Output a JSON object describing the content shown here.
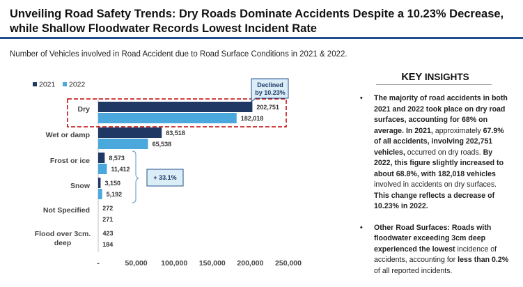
{
  "title_line1": "Unveiling Road Safety Trends: Dry Roads Dominate Accidents Despite a 10.23% Decrease,",
  "title_line2": "while Shallow Floodwater Records Lowest Incident Rate",
  "subtitle": "Number of Vehicles involved in Road Accident due to Road Surface Conditions in 2021 & 2022.",
  "colors": {
    "series_2021": "#1f3864",
    "series_2022": "#4ba8dc",
    "title_rule": "#1f4e8c",
    "highlight": "#c00000",
    "callout_fill": "#dbeef8",
    "callout_border": "#1f4e8c"
  },
  "chart_data": {
    "type": "bar",
    "orientation": "horizontal",
    "categories": [
      "Dry",
      "Wet or damp",
      "Frost or ice",
      "Snow",
      "Not Specified",
      "Flood over 3cm. deep"
    ],
    "series": [
      {
        "name": "2021",
        "values": [
          202751,
          83518,
          8573,
          3150,
          272,
          423
        ],
        "labels": [
          "202,751",
          "83,518",
          "8,573",
          "3,150",
          "272",
          "423"
        ]
      },
      {
        "name": "2022",
        "values": [
          182018,
          65538,
          11412,
          5192,
          271,
          184
        ],
        "labels": [
          "182,018",
          "65,538",
          "11,412",
          "5,192",
          "271",
          "184"
        ]
      }
    ],
    "xlim": [
      0,
      250000
    ],
    "xticks": [
      "-",
      "50,000",
      "100,000",
      "150,000",
      "200,000",
      "250,000"
    ],
    "legend": "top-left",
    "grid": false
  },
  "callouts": {
    "dry_decline": "Declined by 10.23%",
    "frost_snow_increase": "+ 33.1%"
  },
  "insights": {
    "key_word": "KEY",
    "rest_word": " INSIGHTS",
    "bullet_char": "•"
  }
}
